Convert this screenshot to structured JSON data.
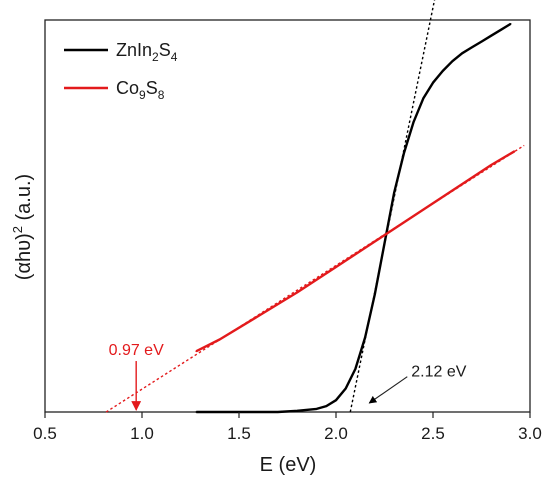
{
  "chart_data": {
    "type": "line",
    "xlabel": "E (eV)",
    "ylabel": "(αhυ)² (a.u.)",
    "ylabel_parts": {
      "pre": "(αhυ)",
      "sup": "2",
      "post": " (a.u.)"
    },
    "xlim": [
      0.5,
      3.0
    ],
    "ylim": [
      0,
      100
    ],
    "x_ticks": [
      "0.5",
      "1.0",
      "1.5",
      "2.0",
      "2.5",
      "3.0"
    ],
    "y_tick_labels": false,
    "grid": false,
    "legend_position": "top-left",
    "colors": {
      "ZnIn2S4": "#000000",
      "Co9S8": "#e31a1c"
    },
    "legend": [
      {
        "key": "ZnIn2S4",
        "parts": [
          [
            "Zn",
            ""
          ],
          [
            "In",
            ""
          ],
          [
            "2",
            "sub"
          ],
          [
            "S",
            ""
          ],
          [
            "4",
            "sub"
          ]
        ]
      },
      {
        "key": "Co9S8",
        "parts": [
          [
            "Co",
            ""
          ],
          [
            "9",
            "sub"
          ],
          [
            "S",
            ""
          ],
          [
            "8",
            "sub"
          ]
        ]
      }
    ],
    "series": [
      {
        "key": "ZnIn2S4",
        "x": [
          1.28,
          1.5,
          1.7,
          1.8,
          1.9,
          1.95,
          2.0,
          2.05,
          2.1,
          2.15,
          2.2,
          2.25,
          2.3,
          2.35,
          2.4,
          2.45,
          2.5,
          2.55,
          2.6,
          2.65,
          2.7,
          2.75,
          2.8,
          2.85,
          2.9
        ],
        "y": [
          0,
          0,
          0,
          0.3,
          0.8,
          1.5,
          3,
          6,
          11,
          19,
          30,
          43,
          56,
          66,
          74,
          80,
          84,
          87,
          89.5,
          91.5,
          93,
          94.5,
          96,
          97.5,
          99
        ]
      },
      {
        "key": "Co9S8",
        "x": [
          1.28,
          1.4,
          1.6,
          1.8,
          2.0,
          2.2,
          2.4,
          2.6,
          2.8,
          2.92
        ],
        "y": [
          15.5,
          18.5,
          24.5,
          30.5,
          37,
          43.5,
          50,
          56.5,
          63,
          66.5
        ]
      }
    ],
    "fit_lines": [
      {
        "key": "ZnIn2S4",
        "x": [
          2.12,
          2.6
        ]
      },
      {
        "key": "Co9S8",
        "x": [
          0.97,
          2.97
        ]
      }
    ],
    "annotations": [
      {
        "key": "ZnIn2S4",
        "text": "2.12 eV",
        "x": 2.12
      },
      {
        "key": "Co9S8",
        "text": "0.97 eV",
        "x": 0.97
      }
    ]
  }
}
